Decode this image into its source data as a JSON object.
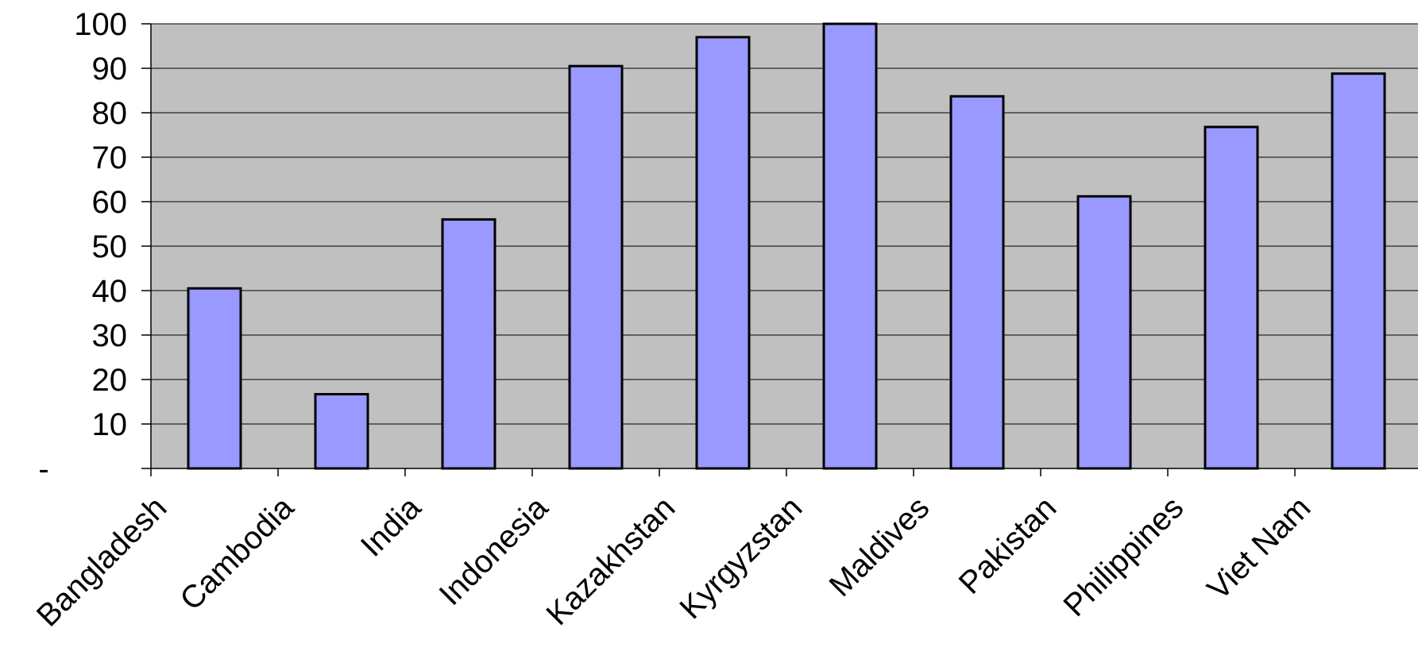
{
  "chart_data": {
    "type": "bar",
    "title": "",
    "xlabel": "",
    "ylabel": "",
    "categories": [
      "Bangladesh",
      "Cambodia",
      "India",
      "Indonesia",
      "Kazakhstan",
      "Kyrgyzstan",
      "Maldives",
      "Pakistan",
      "Philippines",
      "Viet Nam"
    ],
    "values": [
      40.5,
      16.7,
      56,
      90.5,
      97,
      100,
      83.7,
      61.2,
      76.8,
      88.8
    ],
    "ylim": [
      0,
      100
    ],
    "yticks": [
      0,
      10,
      20,
      30,
      40,
      50,
      60,
      70,
      80,
      90,
      100
    ],
    "ytick_labels": [
      "-",
      "10",
      "20",
      "30",
      "40",
      "50",
      "60",
      "70",
      "80",
      "90",
      "100"
    ],
    "grid": true,
    "legend": "none",
    "colors": {
      "plot_background": "#c0c0c0",
      "bar_fill": "#9999ff",
      "bar_stroke": "#000000",
      "gridline": "#000000",
      "page_background": "#ffffff"
    }
  }
}
